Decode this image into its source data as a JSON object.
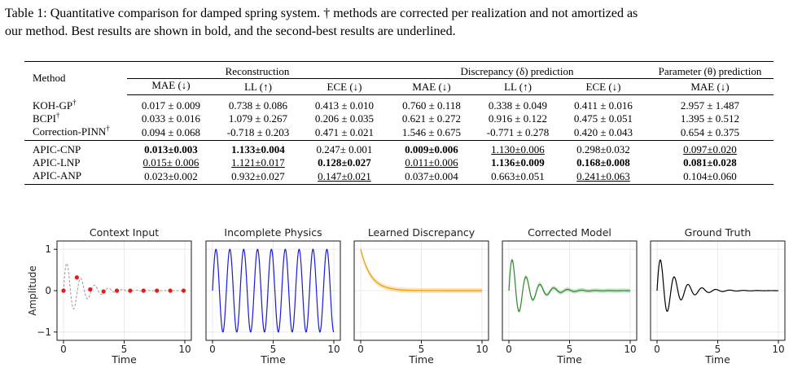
{
  "caption": {
    "line1": "Table 1: Quantitative comparison for damped spring system. † methods are corrected per realization and not amortized as",
    "line2": "our method. Best results are shown in bold, and the second-best results are underlined."
  },
  "table": {
    "method_header": "Method",
    "groups": [
      "Reconstruction",
      "Discrepancy (δ) prediction",
      "Parameter (θ) prediction"
    ],
    "columns": [
      "MAE (↓)",
      "LL (↑)",
      "ECE (↓)",
      "MAE (↓)",
      "LL (↑)",
      "ECE (↓)",
      "MAE (↓)"
    ],
    "dagger": "†",
    "baselines": [
      {
        "method": "KOH-GP",
        "cells": [
          "0.017 ± 0.009",
          "0.738 ± 0.086",
          "0.413 ± 0.010",
          "0.760 ± 0.118",
          "0.338 ± 0.049",
          "0.411 ± 0.016",
          "2.957 ± 1.487"
        ]
      },
      {
        "method": "BCPI",
        "cells": [
          "0.033 ± 0.016",
          "1.079 ± 0.267",
          "0.206 ± 0.035",
          "0.621 ± 0.272",
          "0.916 ± 0.122",
          "0.475 ± 0.051",
          "1.395 ± 0.512"
        ]
      },
      {
        "method": "Correction-PINN",
        "cells": [
          "0.094 ± 0.068",
          "-0.718 ± 0.203",
          "0.471 ± 0.021",
          "1.546 ± 0.675",
          "-0.771 ± 0.278",
          "0.420 ± 0.043",
          "0.654 ± 0.375"
        ]
      }
    ],
    "ours": [
      {
        "method": "APIC-CNP",
        "cells": [
          "0.013±0.003",
          "1.133±0.004",
          "0.247± 0.001",
          "0.009±0.006",
          "1.130±0.006",
          "0.298±0.032",
          "0.097±0.020"
        ]
      },
      {
        "method": "APIC-LNP",
        "cells": [
          "0.015± 0.006",
          "1.121±0.017",
          "0.128±0.027",
          "0.011±0.006",
          "1.136±0.009",
          "0.168±0.008",
          "0.081±0.028"
        ]
      },
      {
        "method": "APIC-ANP",
        "cells": [
          "0.023±0.002",
          "0.932±0.027",
          "0.147±0.021",
          "0.037±0.004",
          "0.663±0.051",
          "0.241±0.063",
          "0.104±0.060"
        ]
      }
    ]
  },
  "figure": {
    "ylabel": "Amplitude",
    "colors": {
      "context": "#e8191c",
      "physics": "#1a1adb",
      "discrepancy": "#f0a51a",
      "corrected": "#2a8a2a",
      "truth": "#000000",
      "dashed": "#9a9a9a"
    },
    "chart_data": [
      {
        "type": "line",
        "title": "Context Input",
        "xlabel": "Time",
        "x_ticks": [
          "0",
          "5",
          "10"
        ],
        "y_ticks": [
          "1",
          "0",
          "−1"
        ],
        "xlim": [
          0,
          10
        ],
        "ylim": [
          -1.2,
          1.2
        ],
        "series": [
          {
            "kind": "dashed-underlying",
            "y0": 1.0,
            "decay": 0.7,
            "omega": 5.5
          }
        ],
        "points": {
          "x": [
            0.0,
            1.1,
            2.2,
            3.3,
            4.4,
            5.5,
            6.6,
            7.7,
            8.8,
            9.9
          ],
          "y": [
            0.0,
            0.32,
            0.03,
            -0.02,
            0.0,
            0.0,
            0.0,
            0.0,
            0.0,
            0.0
          ]
        }
      },
      {
        "type": "line",
        "title": "Incomplete Physics",
        "xlabel": "Time",
        "x_ticks": [
          "0",
          "5",
          "10"
        ],
        "xlim": [
          0,
          10
        ],
        "ylim": [
          -1.2,
          1.2
        ],
        "series": [
          {
            "kind": "undamped",
            "amplitude": 1.0,
            "omega": 5.5
          }
        ]
      },
      {
        "type": "line",
        "title": "Learned Discrepancy",
        "xlabel": "Time",
        "x_ticks": [
          "0",
          "5",
          "10"
        ],
        "xlim": [
          0,
          10
        ],
        "ylim": [
          -1.2,
          1.2
        ],
        "series": [
          {
            "kind": "exp-decay",
            "y0": 1.0,
            "rate": 1.2,
            "band": 0.06
          }
        ]
      },
      {
        "type": "line",
        "title": "Corrected Model",
        "xlabel": "Time",
        "x_ticks": [
          "0",
          "5",
          "10"
        ],
        "xlim": [
          0,
          10
        ],
        "ylim": [
          -1.2,
          1.2
        ],
        "series": [
          {
            "kind": "damped",
            "y0": 0.9,
            "decay": 0.7,
            "omega": 5.5,
            "band": 0.05
          }
        ]
      },
      {
        "type": "line",
        "title": "Ground Truth",
        "xlabel": "Time",
        "x_ticks": [
          "0",
          "5",
          "10"
        ],
        "xlim": [
          0,
          10
        ],
        "ylim": [
          -1.2,
          1.2
        ],
        "series": [
          {
            "kind": "damped",
            "y0": 0.9,
            "decay": 0.7,
            "omega": 5.5
          }
        ]
      }
    ]
  }
}
